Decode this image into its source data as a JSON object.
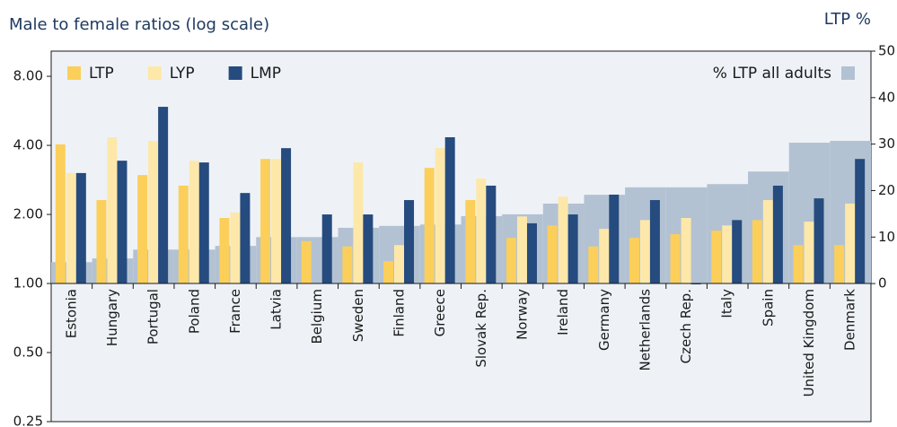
{
  "chart_data": {
    "type": "bar",
    "title": "Male to female ratios (log scale)",
    "y2_title": "LTP %",
    "log_scale": true,
    "categories": [
      "Estonia",
      "Hungary",
      "Portugal",
      "Poland",
      "France",
      "Latvia",
      "Belgium",
      "Sweden",
      "Finland",
      "Greece",
      "Slovak Rep.",
      "Norway",
      "Ireland",
      "Germany",
      "Netherlands",
      "Czech Rep.",
      "Italy",
      "Spain",
      "United Kingdom",
      "Denmark"
    ],
    "series": [
      {
        "name": "% LTP all adults",
        "color": "#b3c2d2",
        "axis": "y2",
        "values": [
          4.6,
          5.4,
          7.3,
          7.3,
          8.1,
          10.0,
          10.0,
          12.0,
          12.4,
          12.7,
          14.5,
          14.9,
          17.2,
          19.1,
          20.7,
          20.7,
          21.4,
          24.1,
          30.3,
          30.7
        ]
      },
      {
        "name": "LTP",
        "color": "#fbcf5a",
        "values": [
          4.04,
          2.31,
          2.97,
          2.67,
          1.93,
          3.49,
          1.53,
          1.45,
          1.25,
          3.19,
          2.31,
          1.58,
          1.79,
          1.45,
          1.58,
          1.64,
          1.7,
          1.89,
          1.47,
          1.47
        ]
      },
      {
        "name": "LYP",
        "color": "#fde8a9",
        "values": [
          3.03,
          4.34,
          4.18,
          3.43,
          2.04,
          3.49,
          null,
          3.37,
          1.47,
          3.89,
          2.87,
          1.96,
          2.39,
          1.73,
          1.89,
          1.93,
          1.79,
          2.31,
          1.86,
          2.23
        ]
      },
      {
        "name": "LMP",
        "color": "#264b7e",
        "values": [
          3.03,
          3.43,
          5.89,
          3.37,
          2.48,
          3.89,
          2.0,
          2.0,
          2.31,
          4.34,
          2.67,
          1.83,
          2.0,
          2.44,
          2.31,
          1.0,
          1.89,
          2.67,
          2.35,
          3.49
        ]
      }
    ],
    "ylim": [
      0.25,
      10.3
    ],
    "yticks": [
      {
        "value": 0.25,
        "label": "0.25"
      },
      {
        "value": 0.5,
        "label": "0.50"
      },
      {
        "value": 1,
        "label": "1.00"
      },
      {
        "value": 2,
        "label": "2.00"
      },
      {
        "value": 4,
        "label": "4.00"
      },
      {
        "value": 8,
        "label": "8.00"
      }
    ],
    "y2lim": [
      -29.7,
      50
    ],
    "y2ticks": [
      0,
      10,
      20,
      30,
      40,
      50
    ]
  }
}
